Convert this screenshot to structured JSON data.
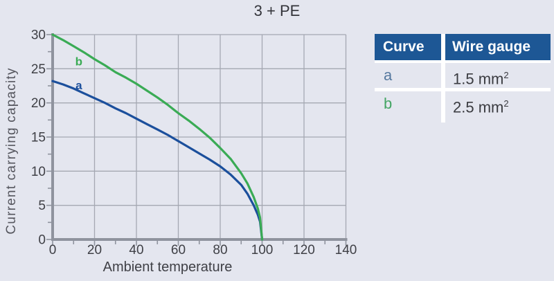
{
  "title": "3 + PE",
  "chart_data": {
    "type": "line",
    "title": "3 + PE",
    "xlabel": "Ambient temperature",
    "ylabel": "Current carrying capacity",
    "xlim": [
      0,
      140
    ],
    "ylim": [
      0,
      30
    ],
    "x_major_ticks": [
      0,
      20,
      40,
      60,
      80,
      100,
      120,
      140
    ],
    "x_minor_step": 10,
    "y_major_ticks": [
      0,
      5,
      10,
      15,
      20,
      25,
      30
    ],
    "y_minor_step": 2.5,
    "grid": true,
    "legend_position": "right-table",
    "series": [
      {
        "name": "a",
        "wire_gauge": "1.5 mm²",
        "color": "#1b4f9c",
        "label_pos": {
          "x": 12.5,
          "y": 22.0
        },
        "points": [
          [
            0,
            23.2
          ],
          [
            5,
            22.7
          ],
          [
            10,
            22.1
          ],
          [
            15,
            21.4
          ],
          [
            20,
            20.7
          ],
          [
            25,
            20.0
          ],
          [
            30,
            19.2
          ],
          [
            35,
            18.5
          ],
          [
            40,
            17.7
          ],
          [
            45,
            16.9
          ],
          [
            50,
            16.1
          ],
          [
            55,
            15.3
          ],
          [
            60,
            14.4
          ],
          [
            65,
            13.5
          ],
          [
            70,
            12.6
          ],
          [
            75,
            11.7
          ],
          [
            80,
            10.7
          ],
          [
            85,
            9.5
          ],
          [
            90,
            8.0
          ],
          [
            93,
            6.7
          ],
          [
            96,
            5.0
          ],
          [
            98,
            3.6
          ],
          [
            99,
            2.6
          ],
          [
            100,
            0
          ]
        ]
      },
      {
        "name": "b",
        "wire_gauge": "2.5 mm²",
        "color": "#3aab55",
        "label_pos": {
          "x": 12.5,
          "y": 25.5
        },
        "points": [
          [
            0,
            30
          ],
          [
            5,
            29.2
          ],
          [
            10,
            28.3
          ],
          [
            15,
            27.4
          ],
          [
            20,
            26.4
          ],
          [
            25,
            25.5
          ],
          [
            30,
            24.5
          ],
          [
            35,
            23.7
          ],
          [
            40,
            22.8
          ],
          [
            45,
            21.8
          ],
          [
            50,
            20.8
          ],
          [
            55,
            19.7
          ],
          [
            60,
            18.5
          ],
          [
            65,
            17.4
          ],
          [
            70,
            16.2
          ],
          [
            75,
            14.9
          ],
          [
            80,
            13.4
          ],
          [
            85,
            11.8
          ],
          [
            90,
            9.7
          ],
          [
            93,
            8.2
          ],
          [
            96,
            6.2
          ],
          [
            98,
            4.5
          ],
          [
            99,
            3.2
          ],
          [
            100,
            0
          ]
        ]
      }
    ]
  },
  "legend": {
    "headers": [
      "Curve",
      "Wire gauge"
    ],
    "rows": [
      {
        "curve": "a",
        "gauge": "1.5 mm",
        "gauge_exp": "2",
        "curve_color": "#56799f"
      },
      {
        "curve": "b",
        "gauge": "2.5 mm",
        "gauge_exp": "2",
        "curve_color": "#44a564"
      }
    ]
  },
  "colors": {
    "background": "#e4e6ef",
    "grid": "#a5a8b2",
    "axis": "#8f939e",
    "tick_text": "#3f4046",
    "axis_title_text": "#55565e",
    "title_text": "#33343a",
    "table_header_bg": "#1d5795",
    "table_header_text": "#ffffff",
    "table_divider": "#ffffff",
    "curve_a": "#1b4f9c",
    "curve_b": "#3aab55"
  }
}
